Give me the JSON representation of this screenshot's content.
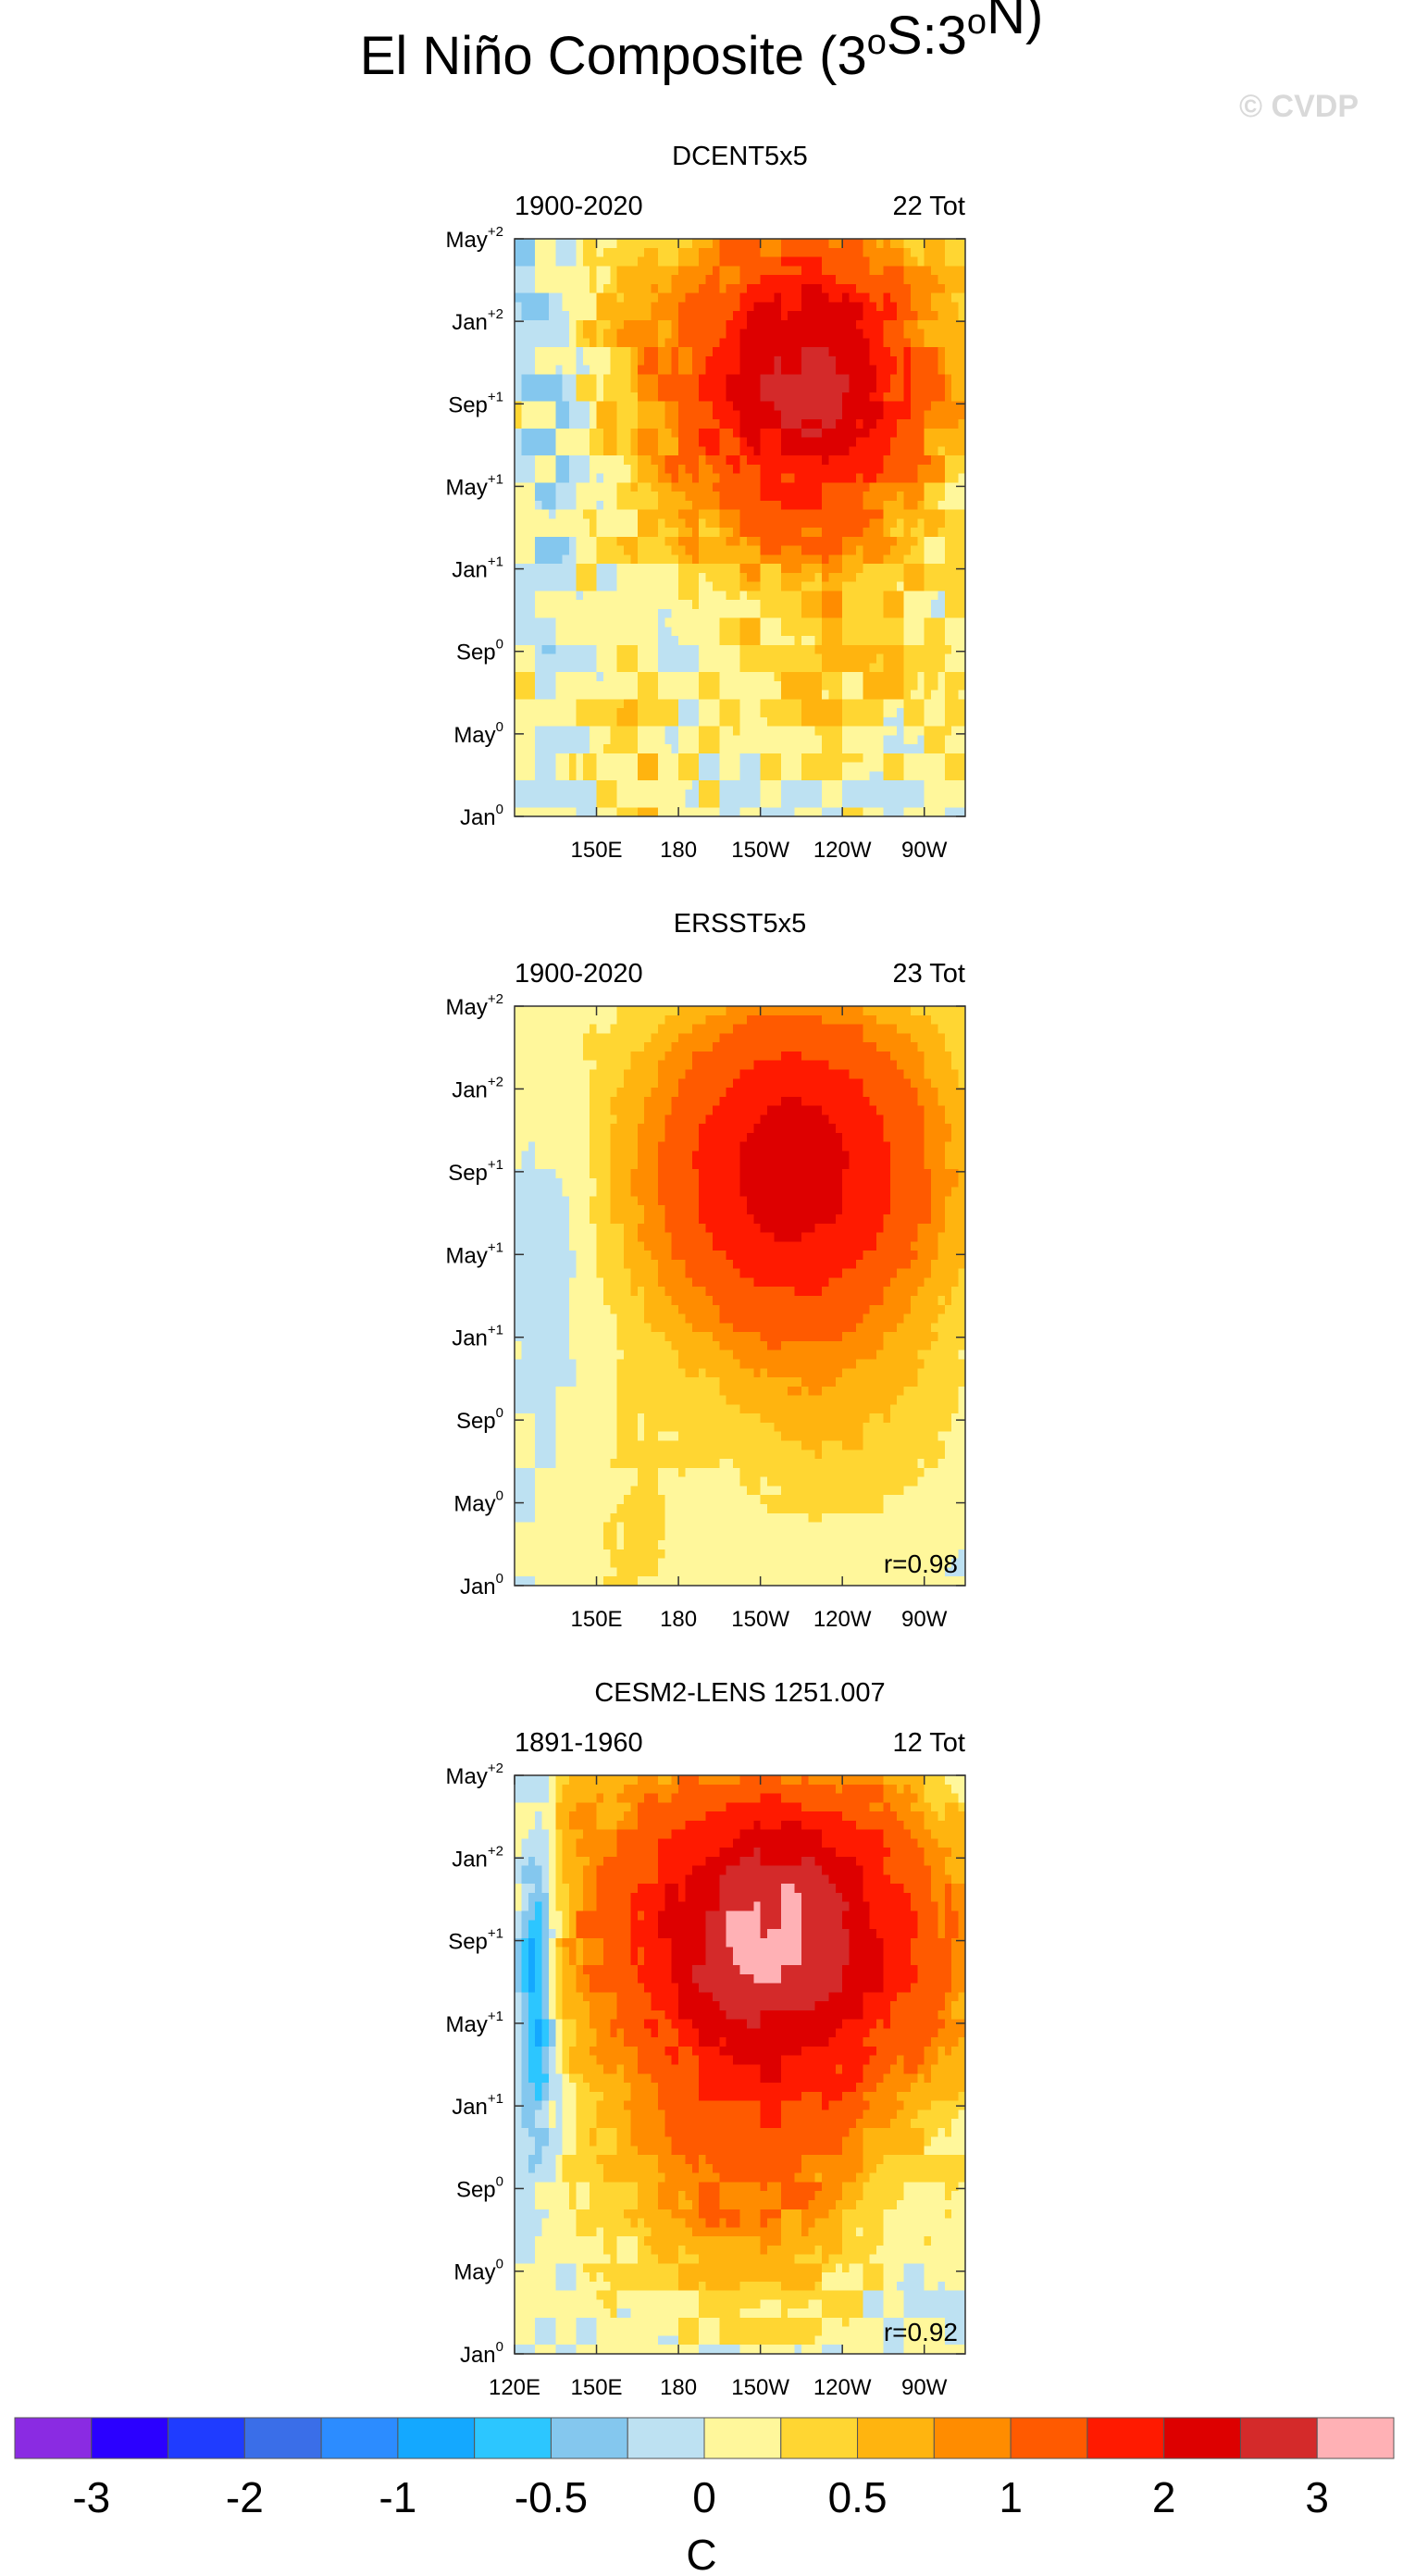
{
  "figure": {
    "title": "El Niño Composite (3°S:3°N)",
    "watermark": "© CVDP",
    "colorbar": {
      "colors": [
        "#8a2be2",
        "#2b00ff",
        "#1f3cff",
        "#3a6ee8",
        "#2c8cff",
        "#14a8ff",
        "#2cc6ff",
        "#84c7ee",
        "#bde1f2",
        "#fff79b",
        "#ffd632",
        "#ffb40f",
        "#ff8c00",
        "#ff5a00",
        "#ff1a00",
        "#dd0000",
        "#d42a2a",
        "#ffb1b5"
      ],
      "labels": [
        {
          "text": "-3",
          "boundary": 1
        },
        {
          "text": "-2",
          "boundary": 3
        },
        {
          "text": "-1",
          "boundary": 5
        },
        {
          "text": "-0.5",
          "boundary": 7
        },
        {
          "text": "0",
          "boundary": 9
        },
        {
          "text": "0.5",
          "boundary": 11
        },
        {
          "text": "1",
          "boundary": 13
        },
        {
          "text": "2",
          "boundary": 15
        },
        {
          "text": "3",
          "boundary": 17
        }
      ],
      "units": "C"
    }
  },
  "chart_data": [
    {
      "type": "heatmap",
      "title": "DCENT5x5",
      "left_label": "1900-2020",
      "right_label": "22 Tot",
      "correlation": "",
      "x_ticks": [
        "150E",
        "180",
        "150W",
        "120W",
        "90W"
      ],
      "y_ticks": [
        {
          "base": "Jan",
          "sup": "0"
        },
        {
          "base": "May",
          "sup": "0"
        },
        {
          "base": "Sep",
          "sup": "0"
        },
        {
          "base": "Jan",
          "sup": "+1"
        },
        {
          "base": "May",
          "sup": "+1"
        },
        {
          "base": "Sep",
          "sup": "+1"
        },
        {
          "base": "Jan",
          "sup": "+2"
        },
        {
          "base": "May",
          "sup": "+2"
        }
      ],
      "features": [
        {
          "x": 165,
          "y": 1,
          "sx": 18,
          "sy": 3,
          "amp": 0.35
        },
        {
          "x": 145,
          "y": 20,
          "sx": 14,
          "sy": 6,
          "amp": 0.25
        },
        {
          "x": 220,
          "y": 12,
          "sx": 55,
          "sy": 4.8,
          "amp": 1.9
        },
        {
          "x": 235,
          "y": 12.3,
          "sx": 30,
          "sy": 3,
          "amp": 0.9
        },
        {
          "x": 240,
          "y": 4,
          "sx": 40,
          "sy": 3,
          "amp": 0.35
        },
        {
          "x": 220,
          "y": 20.5,
          "sx": 45,
          "sy": 3.2,
          "amp": -0.9
        },
        {
          "x": 135,
          "y": 10,
          "sx": 12,
          "sy": 4,
          "amp": -0.3
        },
        {
          "x": 135,
          "y": 17,
          "sx": 12,
          "sy": 4,
          "amp": -0.15
        }
      ],
      "base": 0.0,
      "noise": 0.28
    },
    {
      "type": "heatmap",
      "title": "ERSST5x5",
      "left_label": "1900-2020",
      "right_label": "23 Tot",
      "correlation": "r=0.98",
      "x_ticks": [
        "150E",
        "180",
        "150W",
        "120W",
        "90W"
      ],
      "y_ticks": [
        {
          "base": "Jan",
          "sup": "0"
        },
        {
          "base": "May",
          "sup": "0"
        },
        {
          "base": "Sep",
          "sup": "0"
        },
        {
          "base": "Jan",
          "sup": "+1"
        },
        {
          "base": "May",
          "sup": "+1"
        },
        {
          "base": "Sep",
          "sup": "+1"
        },
        {
          "base": "Jan",
          "sup": "+2"
        },
        {
          "base": "May",
          "sup": "+2"
        }
      ],
      "features": [
        {
          "x": 165,
          "y": 1,
          "sx": 20,
          "sy": 4,
          "amp": 0.3
        },
        {
          "x": 130,
          "y": 19,
          "sx": 15,
          "sy": 5,
          "amp": 0.22
        },
        {
          "x": 222,
          "y": 11.5,
          "sx": 55,
          "sy": 5,
          "amp": 2.3
        },
        {
          "x": 240,
          "y": 4,
          "sx": 45,
          "sy": 3,
          "amp": 0.3
        },
        {
          "x": 225,
          "y": 20.5,
          "sx": 42,
          "sy": 3.3,
          "amp": -1.1
        },
        {
          "x": 135,
          "y": 10,
          "sx": 14,
          "sy": 4,
          "amp": -0.28
        }
      ],
      "base": 0.0,
      "noise": 0.05
    },
    {
      "type": "heatmap",
      "title": "CESM2-LENS 1251.007",
      "left_label": "1891-1960",
      "right_label": "12 Tot",
      "correlation": "r=0.92",
      "x_ticks": [
        "120E",
        "150E",
        "180",
        "150W",
        "120W",
        "90W"
      ],
      "y_ticks": [
        {
          "base": "Jan",
          "sup": "0"
        },
        {
          "base": "May",
          "sup": "0"
        },
        {
          "base": "Sep",
          "sup": "0"
        },
        {
          "base": "Jan",
          "sup": "+1"
        },
        {
          "base": "May",
          "sup": "+1"
        },
        {
          "base": "Sep",
          "sup": "+1"
        },
        {
          "base": "Jan",
          "sup": "+2"
        },
        {
          "base": "May",
          "sup": "+2"
        }
      ],
      "features": [
        {
          "x": 215,
          "y": 11.5,
          "sx": 60,
          "sy": 5,
          "amp": 3.1
        },
        {
          "x": 200,
          "y": 4,
          "sx": 45,
          "sy": 3,
          "amp": 0.7
        },
        {
          "x": 220,
          "y": 20.5,
          "sx": 50,
          "sy": 3.5,
          "amp": -1.9
        },
        {
          "x": 128,
          "y": 10,
          "sx": 7,
          "sy": 4,
          "amp": -1.2
        },
        {
          "x": 145,
          "y": 18,
          "sx": 10,
          "sy": 7,
          "amp": 0.3
        }
      ],
      "base": 0.0,
      "noise": 0.18
    }
  ]
}
